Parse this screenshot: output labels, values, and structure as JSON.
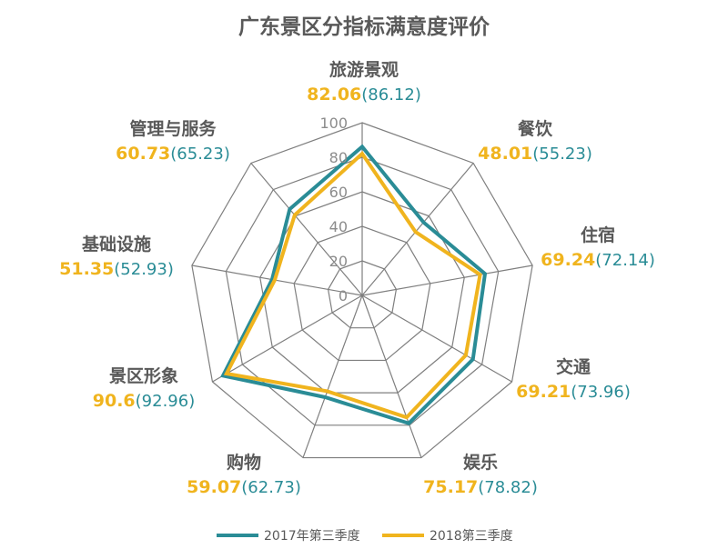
{
  "chart_data": {
    "type": "radar",
    "title": "广东景区分指标满意度评价",
    "categories": [
      "旅游景观",
      "餐饮",
      "住宿",
      "交通",
      "娱乐",
      "购物",
      "景区形象",
      "基础设施",
      "管理与服务"
    ],
    "series": [
      {
        "name": "2017年第三季度",
        "color": "#2A8C96",
        "values": [
          86.12,
          55.23,
          72.14,
          73.96,
          78.82,
          62.73,
          92.96,
          52.93,
          65.23
        ]
      },
      {
        "name": "2018第三季度",
        "color": "#F0B41E",
        "values": [
          82.06,
          48.01,
          69.24,
          69.21,
          75.17,
          59.07,
          90.6,
          51.35,
          60.73
        ]
      }
    ],
    "value_labels_2018": [
      "82.06",
      "48.01",
      "69.24",
      "69.21",
      "75.17",
      "59.07",
      "90.6",
      "51.35",
      "60.73"
    ],
    "value_labels_2017": [
      "(86.12)",
      "(55.23)",
      "(72.14)",
      "(73.96)",
      "(78.82)",
      "(62.73)",
      "(92.96)",
      "(52.93)",
      "(65.23)"
    ],
    "ticks": [
      0,
      20,
      40,
      60,
      80,
      100
    ],
    "tick_labels": [
      "0",
      "20",
      "40",
      "60",
      "80",
      "100"
    ],
    "rlim": [
      0,
      100
    ],
    "grid": true,
    "legend_position": "bottom"
  }
}
